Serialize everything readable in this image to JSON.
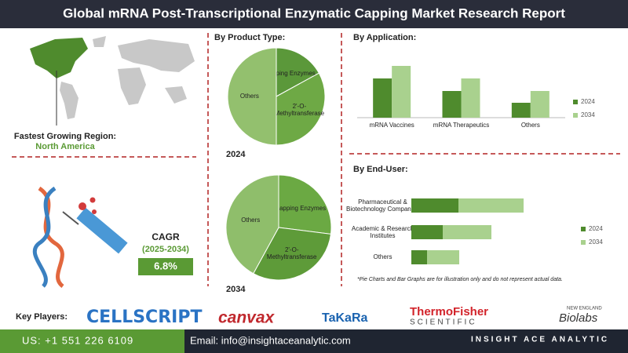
{
  "header": {
    "title": "Global mRNA Post-Transcriptional Enzymatic Capping Market Research Report"
  },
  "region": {
    "label": "Fastest Growing Region:",
    "value": "North America"
  },
  "product_type_heading": "By Product Type:",
  "cagr": {
    "label": "CAGR",
    "period": "(2025-2034)",
    "value": "6.8%"
  },
  "footnote": "*Pie Charts and Bar Graphs are for illustration only and do not represent actual data.",
  "key_players": {
    "label": "Key Players:",
    "companies": [
      "CELLSCRIPT",
      "canvax",
      "TaKaRa",
      "ThermoFisher",
      "SCIENTIFIC",
      "NEW ENGLAND",
      "Biolabs"
    ]
  },
  "footer": {
    "phone": "US: +1 551 226 6109",
    "email": "Email: info@insightaceanalytic.com",
    "brand": "INSIGHT ACE ANALYTIC"
  },
  "chart_data": [
    {
      "type": "pie",
      "title": "2024",
      "categories": [
        "Capping Enzymes",
        "2'-O-Methyltransferase",
        "Others"
      ],
      "values": [
        17,
        33,
        50
      ],
      "colors": [
        "#5b983a",
        "#6ea945",
        "#93c06e"
      ]
    },
    {
      "type": "pie",
      "title": "2034",
      "categories": [
        "Capping Enzymes",
        "2'-O-Methyltransferase",
        "Others"
      ],
      "values": [
        27,
        31,
        42
      ],
      "colors": [
        "#6ba943",
        "#5e9b39",
        "#8fbe6b"
      ]
    },
    {
      "type": "bar",
      "title": "By Application:",
      "categories": [
        "mRNA Vaccines",
        "mRNA Therapeutics",
        "Others"
      ],
      "ylim": [
        0,
        80
      ],
      "series": [
        {
          "name": "2024",
          "color": "#4f8b2d",
          "values": [
            50,
            34,
            19
          ]
        },
        {
          "name": "2034",
          "color": "#a9d18e",
          "values": [
            66,
            50,
            34
          ]
        }
      ]
    },
    {
      "type": "hbar-stacked",
      "title": "By End-User:",
      "categories": [
        "Pharmaceutical & Biotechnology Companies",
        "Academic & Research Institutes",
        "Others"
      ],
      "xlim": [
        0,
        150
      ],
      "series": [
        {
          "name": "2024",
          "color": "#4f8b2d",
          "values": [
            60,
            40,
            20
          ]
        },
        {
          "name": "2034",
          "color": "#a9d18e",
          "values": [
            83,
            62,
            41
          ]
        }
      ]
    }
  ]
}
